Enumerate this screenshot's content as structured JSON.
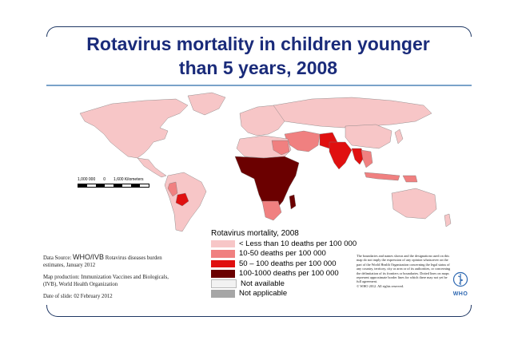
{
  "title": {
    "line1": "Rotavirus mortality in children younger",
    "line2": "than 5 years, 2008"
  },
  "scale": {
    "labels": [
      "1,000 000",
      "0",
      "1,600 Kilometers"
    ]
  },
  "legend": {
    "title": "Rotavirus mortality, 2008",
    "items": [
      {
        "label": "< Less than 10 deaths per 100 000",
        "color": "#f7c6c7"
      },
      {
        "label": "10-50 deaths per 100 000",
        "color": "#f08080"
      },
      {
        "label": "50 – 100 deaths per 100 000",
        "color": "#e01010"
      },
      {
        "label": "100-1000 deaths per 100 000",
        "color": "#6b0000"
      },
      {
        "label": "Not available",
        "color": "#f2f2f2"
      },
      {
        "label": "Not applicable",
        "color": "#a6a6a6"
      }
    ]
  },
  "source": {
    "label": "Data Source:",
    "org": "WHO/IVB",
    "rest": "Rotavirus diseases burden estimates, January 2012",
    "production": "Map production: Immunization Vaccines and Biologicals, (IVB), World Health Organization",
    "date": "Date of slide: 02 February 2012"
  },
  "disclaimer": "The boundaries and names shown and the designations used on this map do not imply the expression of any opinion whatsoever on the part of the World Health Organization concerning the legal status of any country, territory, city or area or of its authorities, or concerning the delimitation of its frontiers or boundaries. Dotted lines on maps represent approximate border lines for which there may not yet be full agreement.\n© WHO 2012. All rights reserved.",
  "logo": {
    "text": "WHO",
    "icon": "who-emblem-icon",
    "color": "#2d67b1"
  },
  "colors": {
    "title": "#1a2b7a",
    "frame": "#1f3864",
    "low": "#f7c6c7",
    "mid": "#f08080",
    "high": "#e01010",
    "veryhigh": "#6b0000"
  }
}
